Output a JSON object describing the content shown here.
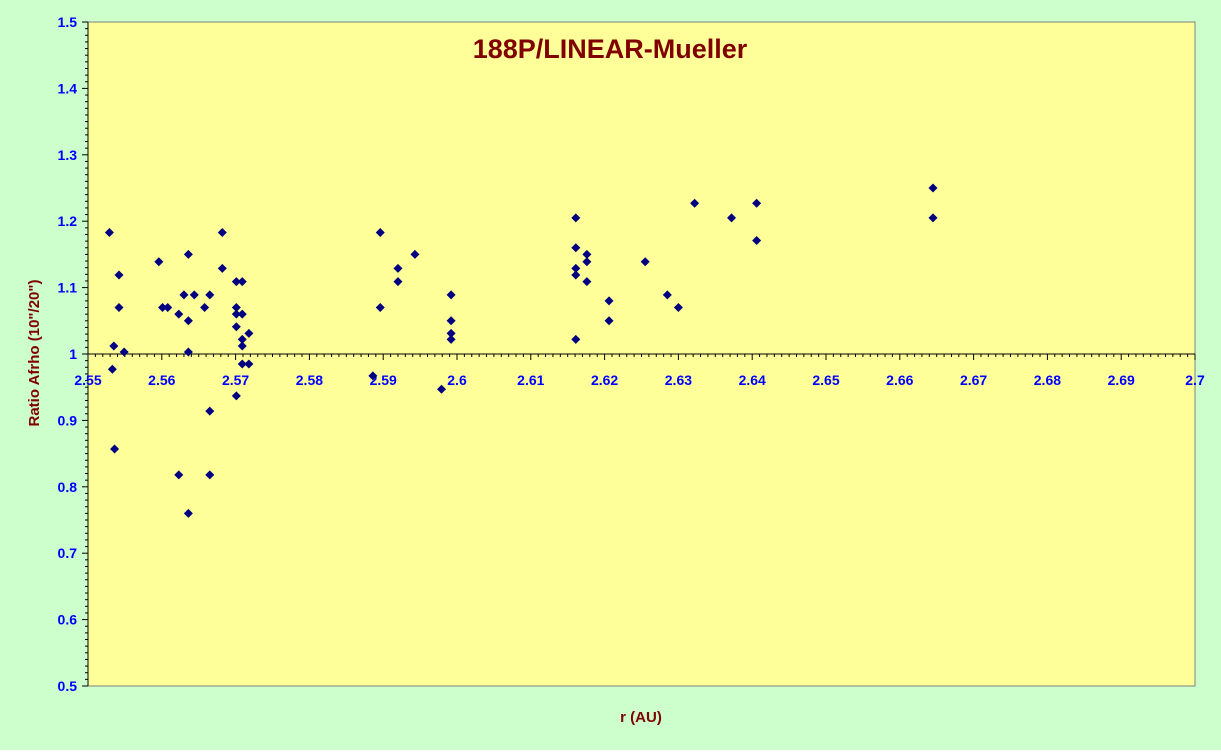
{
  "colors": {
    "outer_background": "#ccffcc",
    "plot_background": "#ffff99",
    "title_color": "#800000",
    "axis_label_color": "#800000",
    "tick_label_color": "#0000ff",
    "marker_color": "#000080",
    "axis_line_color": "#000000"
  },
  "chart_data": {
    "type": "scatter",
    "title": "188P/LINEAR-Mueller",
    "xlabel": "r (AU)",
    "ylabel": "Ratio Afrho (10\"/20\")",
    "xlim": [
      2.55,
      2.7
    ],
    "ylim": [
      0.5,
      1.5
    ],
    "x_axis_crosses_y_at": 1.0,
    "x_ticks": [
      "2.55",
      "2.56",
      "2.57",
      "2.58",
      "2.59",
      "2.6",
      "2.61",
      "2.62",
      "2.63",
      "2.64",
      "2.65",
      "2.66",
      "2.67",
      "2.68",
      "2.69",
      "2.7"
    ],
    "y_ticks": [
      "0.5",
      "0.6",
      "0.7",
      "0.8",
      "0.9",
      "1",
      "1.1",
      "1.2",
      "1.3",
      "1.4",
      "1.5"
    ],
    "grid": false,
    "legend": "none",
    "marker": "diamond",
    "series": [
      {
        "points": [
          [
            2.5529,
            1.183
          ],
          [
            2.5533,
            0.977
          ],
          [
            2.5535,
            1.012
          ],
          [
            2.5536,
            0.857
          ],
          [
            2.5542,
            1.119
          ],
          [
            2.5542,
            1.07
          ],
          [
            2.5549,
            1.003
          ],
          [
            2.5596,
            1.139
          ],
          [
            2.5601,
            1.07
          ],
          [
            2.5608,
            1.07
          ],
          [
            2.5623,
            1.06
          ],
          [
            2.5623,
            0.818
          ],
          [
            2.563,
            1.089
          ],
          [
            2.5636,
            1.15
          ],
          [
            2.5636,
            1.05
          ],
          [
            2.5636,
            1.003
          ],
          [
            2.5636,
            0.76
          ],
          [
            2.5644,
            1.089
          ],
          [
            2.5658,
            1.07
          ],
          [
            2.5665,
            1.089
          ],
          [
            2.5665,
            0.914
          ],
          [
            2.5665,
            0.818
          ],
          [
            2.5682,
            1.183
          ],
          [
            2.5682,
            1.129
          ],
          [
            2.5701,
            1.109
          ],
          [
            2.5701,
            1.07
          ],
          [
            2.5701,
            1.06
          ],
          [
            2.5701,
            1.041
          ],
          [
            2.5701,
            0.937
          ],
          [
            2.5709,
            1.109
          ],
          [
            2.5709,
            1.06
          ],
          [
            2.5709,
            1.022
          ],
          [
            2.5709,
            1.012
          ],
          [
            2.5709,
            0.985
          ],
          [
            2.5718,
            1.031
          ],
          [
            2.5718,
            0.985
          ],
          [
            2.5886,
            0.967
          ],
          [
            2.5896,
            1.183
          ],
          [
            2.5896,
            1.07
          ],
          [
            2.592,
            1.129
          ],
          [
            2.592,
            1.109
          ],
          [
            2.5943,
            1.15
          ],
          [
            2.5979,
            0.947
          ],
          [
            2.5992,
            1.089
          ],
          [
            2.5992,
            1.05
          ],
          [
            2.5992,
            1.031
          ],
          [
            2.5992,
            1.022
          ],
          [
            2.6161,
            1.205
          ],
          [
            2.6161,
            1.16
          ],
          [
            2.6161,
            1.129
          ],
          [
            2.6161,
            1.119
          ],
          [
            2.6161,
            1.022
          ],
          [
            2.6176,
            1.15
          ],
          [
            2.6176,
            1.139
          ],
          [
            2.6176,
            1.109
          ],
          [
            2.6206,
            1.08
          ],
          [
            2.6206,
            1.05
          ],
          [
            2.6255,
            1.139
          ],
          [
            2.6285,
            1.089
          ],
          [
            2.63,
            1.07
          ],
          [
            2.6322,
            1.227
          ],
          [
            2.6372,
            1.205
          ],
          [
            2.6406,
            1.227
          ],
          [
            2.6406,
            1.171
          ],
          [
            2.6645,
            1.25
          ],
          [
            2.6645,
            1.205
          ]
        ]
      }
    ]
  }
}
